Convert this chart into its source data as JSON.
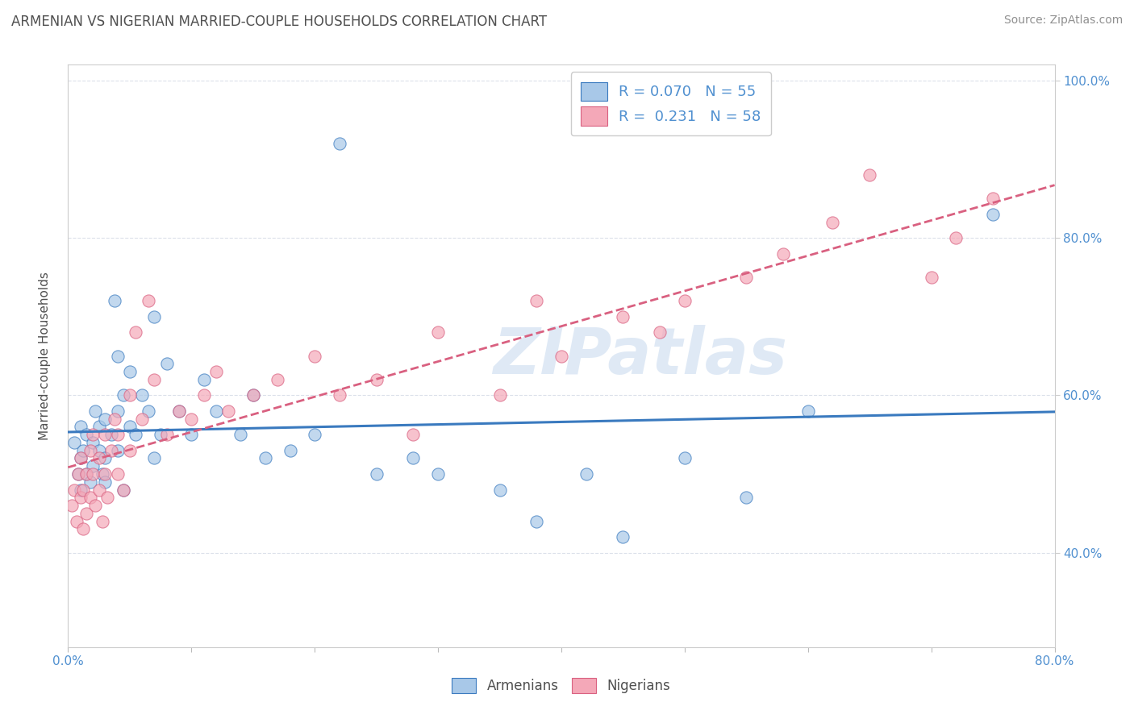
{
  "title": "ARMENIAN VS NIGERIAN MARRIED-COUPLE HOUSEHOLDS CORRELATION CHART",
  "source_text": "Source: ZipAtlas.com",
  "ylabel": "Married-couple Households",
  "watermark": "ZIPatlas",
  "xlim": [
    0.0,
    0.8
  ],
  "ylim": [
    0.28,
    1.02
  ],
  "xticks": [
    0.0,
    0.1,
    0.2,
    0.3,
    0.4,
    0.5,
    0.6,
    0.7,
    0.8
  ],
  "yticks": [
    0.4,
    0.6,
    0.8,
    1.0
  ],
  "yticklabels": [
    "40.0%",
    "60.0%",
    "80.0%",
    "100.0%"
  ],
  "armenians_color": "#a8c8e8",
  "nigerians_color": "#f4a8b8",
  "trend_armenians_color": "#3a7abf",
  "trend_nigerians_color": "#d96080",
  "grid_color": "#d8dde8",
  "title_color": "#505050",
  "source_color": "#909090",
  "tick_color": "#5090d0",
  "background_color": "#ffffff",
  "armenians_x": [
    0.005,
    0.008,
    0.01,
    0.01,
    0.01,
    0.012,
    0.015,
    0.015,
    0.018,
    0.02,
    0.02,
    0.022,
    0.025,
    0.025,
    0.028,
    0.03,
    0.03,
    0.03,
    0.035,
    0.038,
    0.04,
    0.04,
    0.04,
    0.045,
    0.045,
    0.05,
    0.05,
    0.055,
    0.06,
    0.065,
    0.07,
    0.07,
    0.075,
    0.08,
    0.09,
    0.1,
    0.11,
    0.12,
    0.14,
    0.15,
    0.16,
    0.18,
    0.2,
    0.22,
    0.25,
    0.28,
    0.3,
    0.35,
    0.38,
    0.42,
    0.45,
    0.5,
    0.55,
    0.6,
    0.75
  ],
  "armenians_y": [
    0.54,
    0.5,
    0.52,
    0.56,
    0.48,
    0.53,
    0.5,
    0.55,
    0.49,
    0.54,
    0.51,
    0.58,
    0.53,
    0.56,
    0.5,
    0.52,
    0.57,
    0.49,
    0.55,
    0.72,
    0.58,
    0.53,
    0.65,
    0.6,
    0.48,
    0.63,
    0.56,
    0.55,
    0.6,
    0.58,
    0.7,
    0.52,
    0.55,
    0.64,
    0.58,
    0.55,
    0.62,
    0.58,
    0.55,
    0.6,
    0.52,
    0.53,
    0.55,
    0.92,
    0.5,
    0.52,
    0.5,
    0.48,
    0.44,
    0.5,
    0.42,
    0.52,
    0.47,
    0.58,
    0.83
  ],
  "nigerians_x": [
    0.003,
    0.005,
    0.007,
    0.008,
    0.01,
    0.01,
    0.012,
    0.012,
    0.015,
    0.015,
    0.018,
    0.018,
    0.02,
    0.02,
    0.022,
    0.025,
    0.025,
    0.028,
    0.03,
    0.03,
    0.032,
    0.035,
    0.038,
    0.04,
    0.04,
    0.045,
    0.05,
    0.05,
    0.055,
    0.06,
    0.065,
    0.07,
    0.08,
    0.09,
    0.1,
    0.11,
    0.12,
    0.13,
    0.15,
    0.17,
    0.2,
    0.22,
    0.25,
    0.28,
    0.3,
    0.35,
    0.38,
    0.4,
    0.45,
    0.48,
    0.5,
    0.55,
    0.58,
    0.62,
    0.65,
    0.7,
    0.72,
    0.75
  ],
  "nigerians_y": [
    0.46,
    0.48,
    0.44,
    0.5,
    0.47,
    0.52,
    0.48,
    0.43,
    0.5,
    0.45,
    0.53,
    0.47,
    0.55,
    0.5,
    0.46,
    0.52,
    0.48,
    0.44,
    0.55,
    0.5,
    0.47,
    0.53,
    0.57,
    0.5,
    0.55,
    0.48,
    0.6,
    0.53,
    0.68,
    0.57,
    0.72,
    0.62,
    0.55,
    0.58,
    0.57,
    0.6,
    0.63,
    0.58,
    0.6,
    0.62,
    0.65,
    0.6,
    0.62,
    0.55,
    0.68,
    0.6,
    0.72,
    0.65,
    0.7,
    0.68,
    0.72,
    0.75,
    0.78,
    0.82,
    0.88,
    0.75,
    0.8,
    0.85
  ],
  "legend_entries": [
    {
      "label": "R = 0.070   N = 55",
      "color": "#a8c8e8",
      "edge": "#3a7abf"
    },
    {
      "label": "R =  0.231   N = 58",
      "color": "#f4a8b8",
      "edge": "#d96080"
    }
  ],
  "bottom_legend": [
    "Armenians",
    "Nigerians"
  ]
}
